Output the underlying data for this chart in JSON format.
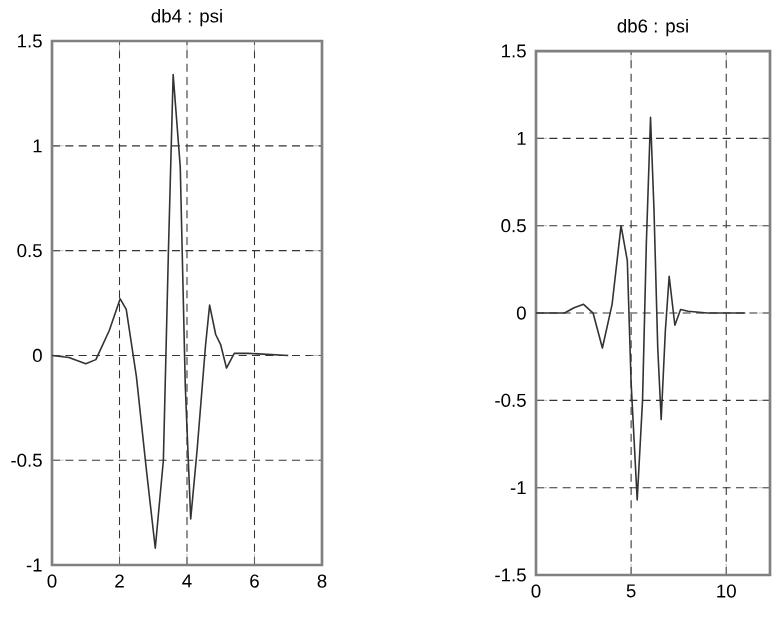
{
  "chart_data": [
    {
      "type": "line",
      "title": "db4 : psi",
      "x": [
        0,
        0.5,
        1,
        1.3,
        1.7,
        2.02,
        2.2,
        2.5,
        2.8,
        3.06,
        3.3,
        3.45,
        3.59,
        3.8,
        3.95,
        4.11,
        4.3,
        4.55,
        4.67,
        4.85,
        5.0,
        5.17,
        5.4,
        5.8,
        7
      ],
      "series": [
        {
          "color": "#333333",
          "values": [
            0,
            -0.01,
            -0.04,
            -0.02,
            0.12,
            0.27,
            0.22,
            -0.1,
            -0.55,
            -0.92,
            -0.5,
            0.5,
            1.34,
            0.9,
            -0.15,
            -0.78,
            -0.45,
            0.05,
            0.24,
            0.1,
            0.05,
            -0.06,
            0.01,
            0.01,
            0
          ]
        }
      ],
      "xlim": [
        0,
        8
      ],
      "xticks": [
        0,
        2,
        4,
        6,
        8
      ],
      "ylim": [
        -1,
        1.5
      ],
      "yticks": [
        -1,
        -0.5,
        0,
        0.5,
        1,
        1.5
      ],
      "grid": true
    },
    {
      "type": "line",
      "title": "db6 : psi",
      "x": [
        0,
        1.5,
        2.0,
        2.5,
        3.0,
        3.49,
        4.0,
        4.47,
        4.8,
        5.0,
        5.32,
        5.6,
        5.8,
        6.02,
        6.2,
        6.4,
        6.58,
        6.8,
        7.0,
        7.3,
        7.6,
        8.0,
        9,
        11
      ],
      "series": [
        {
          "color": "#333333",
          "values": [
            0,
            0,
            0.03,
            0.05,
            0,
            -0.2,
            0.05,
            0.5,
            0.3,
            -0.4,
            -1.07,
            -0.5,
            0.4,
            1.12,
            0.6,
            -0.2,
            -0.61,
            -0.1,
            0.21,
            -0.07,
            0.02,
            0.01,
            0,
            0
          ]
        }
      ],
      "xlim": [
        0,
        12.3
      ],
      "xticks": [
        0,
        5,
        10
      ],
      "ylim": [
        -1.5,
        1.5
      ],
      "yticks": [
        -1.5,
        -1,
        -0.5,
        0,
        0.5,
        1,
        1.5
      ],
      "grid": true
    }
  ]
}
